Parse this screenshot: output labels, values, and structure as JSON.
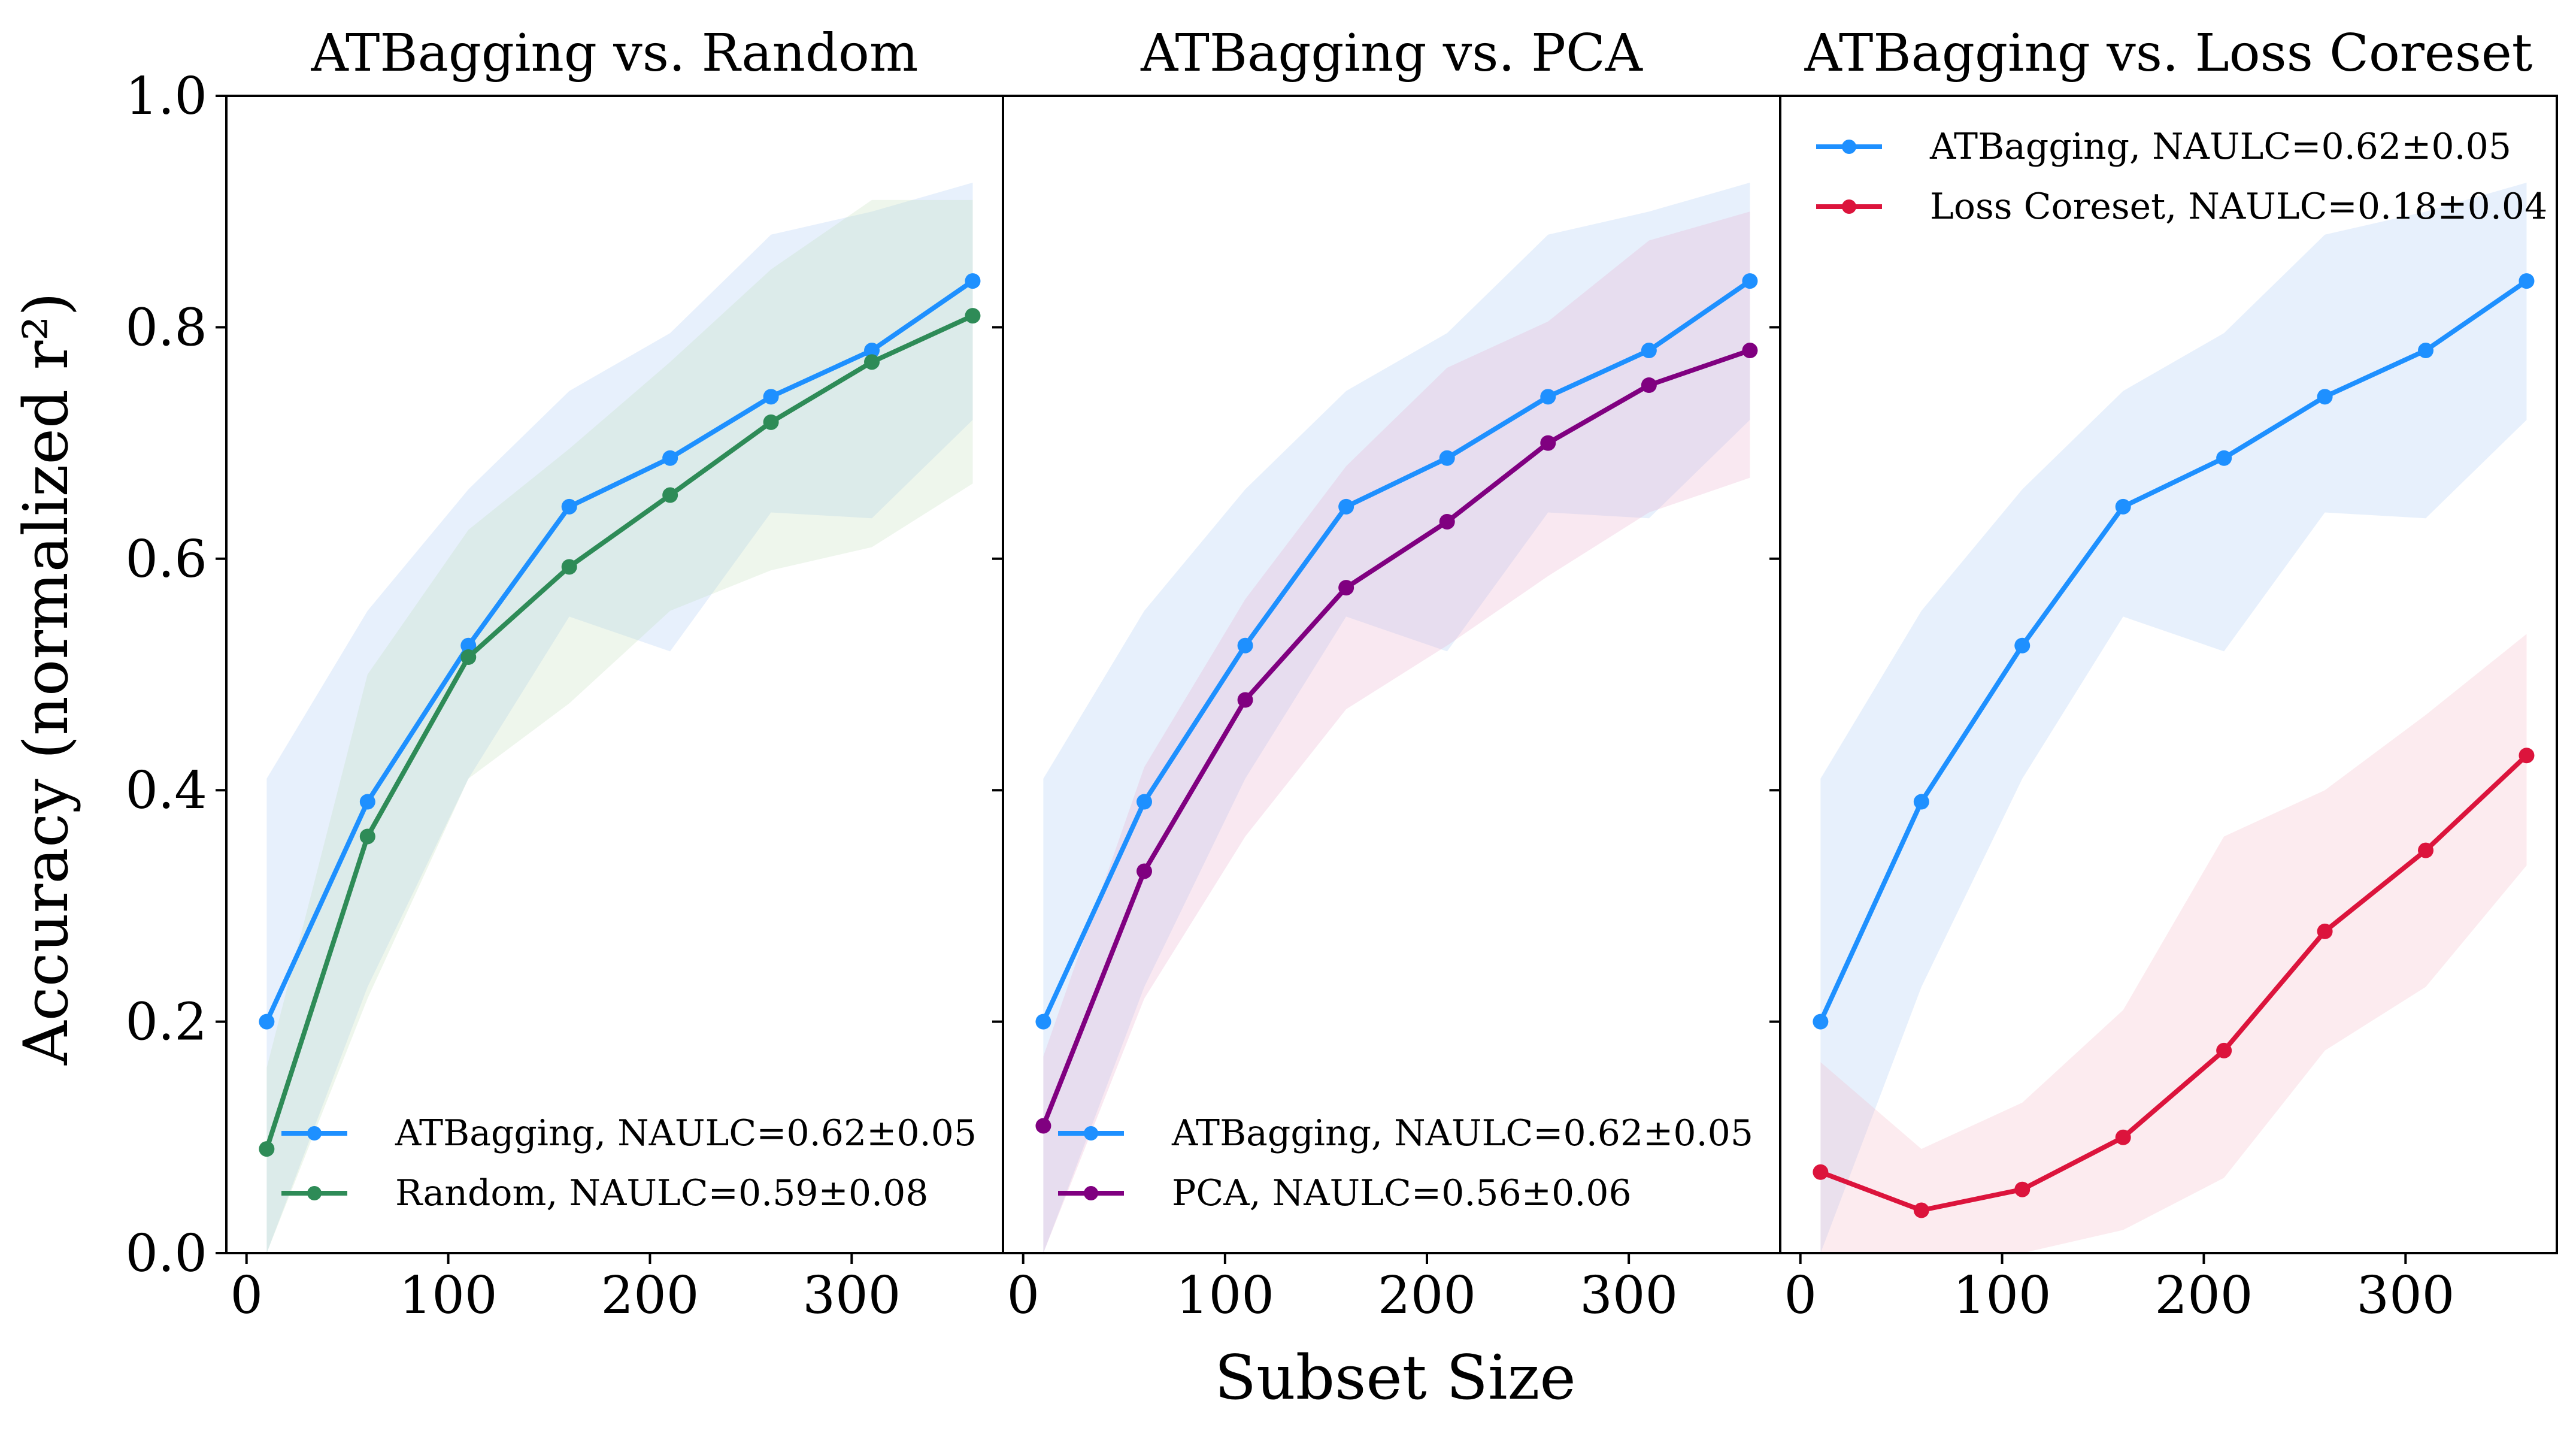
{
  "figure": {
    "xlabel": "Subset Size",
    "ylabel": "Accuracy (normalized r²)"
  },
  "chart_data": [
    {
      "type": "line",
      "title": "ATBagging vs. Random",
      "xlabel": "Subset Size",
      "ylabel": "Accuracy (normalized r²)",
      "xlim": [
        -10,
        375
      ],
      "ylim": [
        0.0,
        1.0
      ],
      "xticks": [
        0,
        100,
        200,
        300
      ],
      "yticks": [
        0.0,
        0.2,
        0.4,
        0.6,
        0.8,
        1.0
      ],
      "ytick_labels": [
        "0.0",
        "0.2",
        "0.4",
        "0.6",
        "0.8",
        "1.0"
      ],
      "legend_position": "lower-right",
      "x": [
        10,
        60,
        110,
        160,
        210,
        260,
        310,
        360
      ],
      "series": [
        {
          "name": "ATBagging, NAULC=0.62±0.05",
          "color": "#1E90FF",
          "band_color": "#9fc5f5",
          "values": [
            0.2,
            0.39,
            0.525,
            0.645,
            0.687,
            0.74,
            0.78,
            0.84
          ],
          "lower": [
            0.0,
            0.23,
            0.41,
            0.55,
            0.52,
            0.64,
            0.635,
            0.72
          ],
          "upper": [
            0.41,
            0.555,
            0.66,
            0.745,
            0.795,
            0.88,
            0.9,
            0.925
          ]
        },
        {
          "name": "Random, NAULC=0.59±0.08",
          "color": "#2E8B57",
          "band_color": "#bcdab5",
          "values": [
            0.09,
            0.36,
            0.515,
            0.593,
            0.655,
            0.718,
            0.77,
            0.81
          ],
          "lower": [
            0.0,
            0.22,
            0.41,
            0.475,
            0.555,
            0.59,
            0.61,
            0.665
          ],
          "upper": [
            0.16,
            0.5,
            0.625,
            0.695,
            0.77,
            0.85,
            0.91,
            0.91
          ]
        }
      ]
    },
    {
      "type": "line",
      "title": "ATBagging vs. PCA",
      "xlabel": "Subset Size",
      "ylabel": "Accuracy (normalized r²)",
      "xlim": [
        -10,
        375
      ],
      "ylim": [
        0.0,
        1.0
      ],
      "xticks": [
        0,
        100,
        200,
        300
      ],
      "yticks": [
        0.0,
        0.2,
        0.4,
        0.6,
        0.8,
        1.0
      ],
      "ytick_labels": [],
      "legend_position": "lower-right",
      "x": [
        10,
        60,
        110,
        160,
        210,
        260,
        310,
        360
      ],
      "series": [
        {
          "name": "ATBagging, NAULC=0.62±0.05",
          "color": "#1E90FF",
          "band_color": "#9fc5f5",
          "values": [
            0.2,
            0.39,
            0.525,
            0.645,
            0.687,
            0.74,
            0.78,
            0.84
          ],
          "lower": [
            0.0,
            0.23,
            0.41,
            0.55,
            0.52,
            0.64,
            0.635,
            0.72
          ],
          "upper": [
            0.41,
            0.555,
            0.66,
            0.745,
            0.795,
            0.88,
            0.9,
            0.925
          ]
        },
        {
          "name": "PCA, NAULC=0.56±0.06",
          "color": "#800080",
          "band_color": "#e8a2c8",
          "values": [
            0.11,
            0.33,
            0.478,
            0.575,
            0.632,
            0.7,
            0.75,
            0.78
          ],
          "lower": [
            0.0,
            0.22,
            0.36,
            0.47,
            0.525,
            0.585,
            0.64,
            0.67
          ],
          "upper": [
            0.17,
            0.42,
            0.565,
            0.68,
            0.765,
            0.805,
            0.875,
            0.9
          ]
        }
      ]
    },
    {
      "type": "line",
      "title": "ATBagging vs. Loss Coreset",
      "xlabel": "Subset Size",
      "ylabel": "Accuracy (normalized r²)",
      "xlim": [
        -10,
        375
      ],
      "ylim": [
        0.0,
        1.0
      ],
      "xticks": [
        0,
        100,
        200,
        300
      ],
      "yticks": [
        0.0,
        0.2,
        0.4,
        0.6,
        0.8,
        1.0
      ],
      "ytick_labels": [],
      "legend_position": "top-left",
      "x": [
        10,
        60,
        110,
        160,
        210,
        260,
        310,
        360
      ],
      "series": [
        {
          "name": "ATBagging, NAULC=0.62±0.05",
          "color": "#1E90FF",
          "band_color": "#9fc5f5",
          "values": [
            0.2,
            0.39,
            0.525,
            0.645,
            0.687,
            0.74,
            0.78,
            0.84
          ],
          "lower": [
            0.0,
            0.23,
            0.41,
            0.55,
            0.52,
            0.64,
            0.635,
            0.72
          ],
          "upper": [
            0.41,
            0.555,
            0.66,
            0.745,
            0.795,
            0.88,
            0.9,
            0.925
          ]
        },
        {
          "name": "Loss Coreset, NAULC=0.18±0.04",
          "color": "#DC143C",
          "band_color": "#f2b0bf",
          "values": [
            0.07,
            0.037,
            0.055,
            0.1,
            0.175,
            0.278,
            0.348,
            0.43
          ],
          "lower": [
            0.0,
            0.0,
            0.0,
            0.02,
            0.065,
            0.175,
            0.23,
            0.335
          ],
          "upper": [
            0.165,
            0.09,
            0.13,
            0.21,
            0.36,
            0.4,
            0.465,
            0.535
          ]
        }
      ]
    }
  ]
}
